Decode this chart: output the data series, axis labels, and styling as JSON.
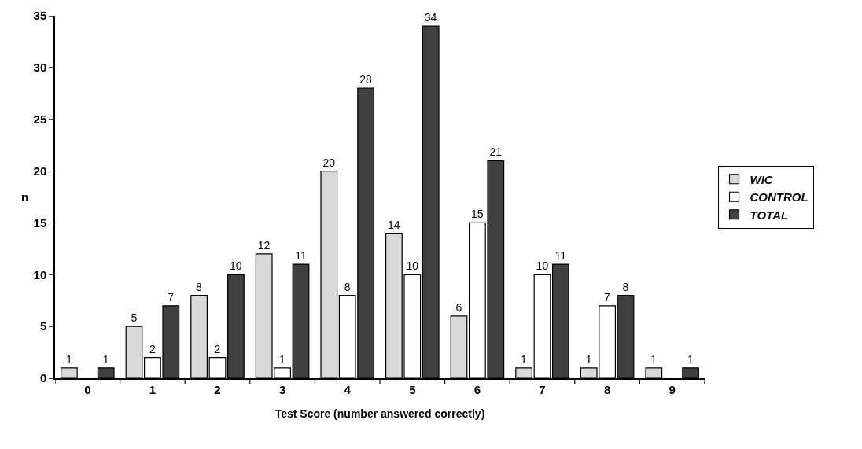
{
  "chart_data": {
    "type": "bar",
    "xlabel": "Test Score (number answered correctly)",
    "ylabel": "n",
    "categories": [
      "0",
      "1",
      "2",
      "3",
      "4",
      "5",
      "6",
      "7",
      "8",
      "9"
    ],
    "series": [
      {
        "name": "WIC",
        "color": "#d9d9d9",
        "values": [
          1,
          5,
          8,
          12,
          20,
          14,
          6,
          1,
          1,
          1
        ]
      },
      {
        "name": "CONTROL",
        "color": "#ffffff",
        "values": [
          null,
          2,
          2,
          1,
          8,
          10,
          15,
          10,
          7,
          null
        ]
      },
      {
        "name": "TOTAL",
        "color": "#404040",
        "values": [
          1,
          7,
          10,
          11,
          28,
          34,
          21,
          11,
          8,
          1
        ]
      }
    ],
    "ylim": [
      0,
      35
    ],
    "yticks": [
      0,
      5,
      10,
      15,
      20,
      25,
      30,
      35
    ],
    "grid": false,
    "legend": "right",
    "data_labels": true
  }
}
